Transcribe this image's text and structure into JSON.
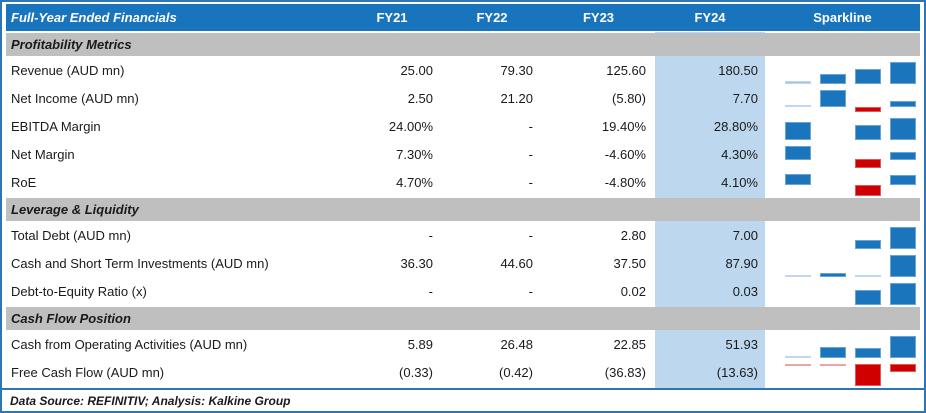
{
  "table": {
    "title": "Full-Year Ended Financials",
    "columns": [
      "FY21",
      "FY22",
      "FY23",
      "FY24",
      "Sparkline"
    ],
    "footer": "Data Source: REFINITIV; Analysis: Kalkine Group",
    "colors": {
      "header_bg": "#1874BC",
      "header_text": "#FFFFFF",
      "section_bg": "#BFBFBF",
      "fy24_highlight_bg": "#BDD7EE",
      "outer_border": "#2E75B6",
      "text": "#1A1A1A",
      "spark_pos": "#1B75BC",
      "spark_neg": "#D00000",
      "spark_pos_light": "#9DC3E6",
      "spark_neg_light": "#E57373"
    },
    "sections": [
      {
        "name": "Profitability Metrics",
        "rows": [
          {
            "label": "Revenue (AUD mn)",
            "values": [
              "25.00",
              "79.30",
              "125.60",
              "180.50"
            ],
            "spark": {
              "zero": 0,
              "bars": [
                0.14,
                0.44,
                0.7,
                1
              ]
            }
          },
          {
            "label": "Net Income (AUD mn)",
            "values": [
              "2.50",
              "21.20",
              "(5.80)",
              "7.70"
            ],
            "spark": {
              "zero": 0.215,
              "bars": [
                0.093,
                0.785,
                -0.215,
                0.285
              ]
            }
          },
          {
            "label": "EBITDA Margin",
            "values": [
              "24.00%",
              "-",
              "19.40%",
              "28.80%"
            ],
            "spark": {
              "zero": 0,
              "bars": [
                0.83,
                null,
                0.67,
                1
              ]
            }
          },
          {
            "label": "Net Margin",
            "values": [
              "7.30%",
              "-",
              "-4.60%",
              "4.30%"
            ],
            "spark": {
              "zero": 0.387,
              "bars": [
                0.613,
                null,
                -0.387,
                0.361
              ]
            }
          },
          {
            "label": "RoE",
            "values": [
              "4.70%",
              "-",
              "-4.80%",
              "4.10%"
            ],
            "spark": {
              "zero": 0.505,
              "bars": [
                0.495,
                null,
                -0.505,
                0.432
              ]
            }
          }
        ]
      },
      {
        "name": "Leverage & Liquidity",
        "rows": [
          {
            "label": "Total Debt (AUD mn)",
            "values": [
              "-",
              "-",
              "2.80",
              "7.00"
            ],
            "spark": {
              "zero": 0,
              "bars": [
                null,
                null,
                0.4,
                1
              ]
            }
          },
          {
            "label": "Cash and Short Term Investments (AUD mn)",
            "values": [
              "36.30",
              "44.60",
              "37.50",
              "87.90"
            ],
            "spark": {
              "zero": 0,
              "bars": [
                0.03,
                0.16,
                0.04,
                1
              ]
            }
          },
          {
            "label": "Debt-to-Equity Ratio (x)",
            "values": [
              "-",
              "-",
              "0.02",
              "0.03"
            ],
            "spark": {
              "zero": 0,
              "bars": [
                null,
                null,
                0.67,
                1
              ]
            }
          }
        ]
      },
      {
        "name": "Cash Flow Position",
        "rows": [
          {
            "label": "Cash from Operating Activities (AUD mn)",
            "values": [
              "5.89",
              "26.48",
              "22.85",
              "51.93"
            ],
            "spark": {
              "zero": 0,
              "bars": [
                0.11,
                0.51,
                0.44,
                1
              ]
            }
          },
          {
            "label": "Free Cash Flow (AUD mn)",
            "values": [
              "(0.33)",
              "(0.42)",
              "(36.83)",
              "(13.63)"
            ],
            "spark": {
              "zero": 1,
              "bars": [
                -0.02,
                -0.02,
                -1,
                -0.37
              ]
            }
          }
        ]
      }
    ]
  },
  "chart_data": {
    "type": "table",
    "title": "Full-Year Ended Financials",
    "columns": [
      "FY21",
      "FY22",
      "FY23",
      "FY24"
    ],
    "notes": "FY24 column highlighted light blue; each row has a 4-point column sparkline (blue = positive, red = negative)",
    "sections": [
      {
        "name": "Profitability Metrics",
        "rows": [
          {
            "metric": "Revenue (AUD mn)",
            "values": [
              25.0,
              79.3,
              125.6,
              180.5
            ]
          },
          {
            "metric": "Net Income (AUD mn)",
            "values": [
              2.5,
              21.2,
              -5.8,
              7.7
            ]
          },
          {
            "metric": "EBITDA Margin (%)",
            "values": [
              24.0,
              null,
              19.4,
              28.8
            ]
          },
          {
            "metric": "Net Margin (%)",
            "values": [
              7.3,
              null,
              -4.6,
              4.3
            ]
          },
          {
            "metric": "RoE (%)",
            "values": [
              4.7,
              null,
              -4.8,
              4.1
            ]
          }
        ]
      },
      {
        "name": "Leverage & Liquidity",
        "rows": [
          {
            "metric": "Total Debt (AUD mn)",
            "values": [
              null,
              null,
              2.8,
              7.0
            ]
          },
          {
            "metric": "Cash and Short Term Investments (AUD mn)",
            "values": [
              36.3,
              44.6,
              37.5,
              87.9
            ]
          },
          {
            "metric": "Debt-to-Equity Ratio (x)",
            "values": [
              null,
              null,
              0.02,
              0.03
            ]
          }
        ]
      },
      {
        "name": "Cash Flow Position",
        "rows": [
          {
            "metric": "Cash from Operating Activities (AUD mn)",
            "values": [
              5.89,
              26.48,
              22.85,
              51.93
            ]
          },
          {
            "metric": "Free Cash Flow (AUD mn)",
            "values": [
              -0.33,
              -0.42,
              -36.83,
              -13.63
            ]
          }
        ]
      }
    ],
    "source": "Data Source: REFINITIV; Analysis: Kalkine Group"
  }
}
